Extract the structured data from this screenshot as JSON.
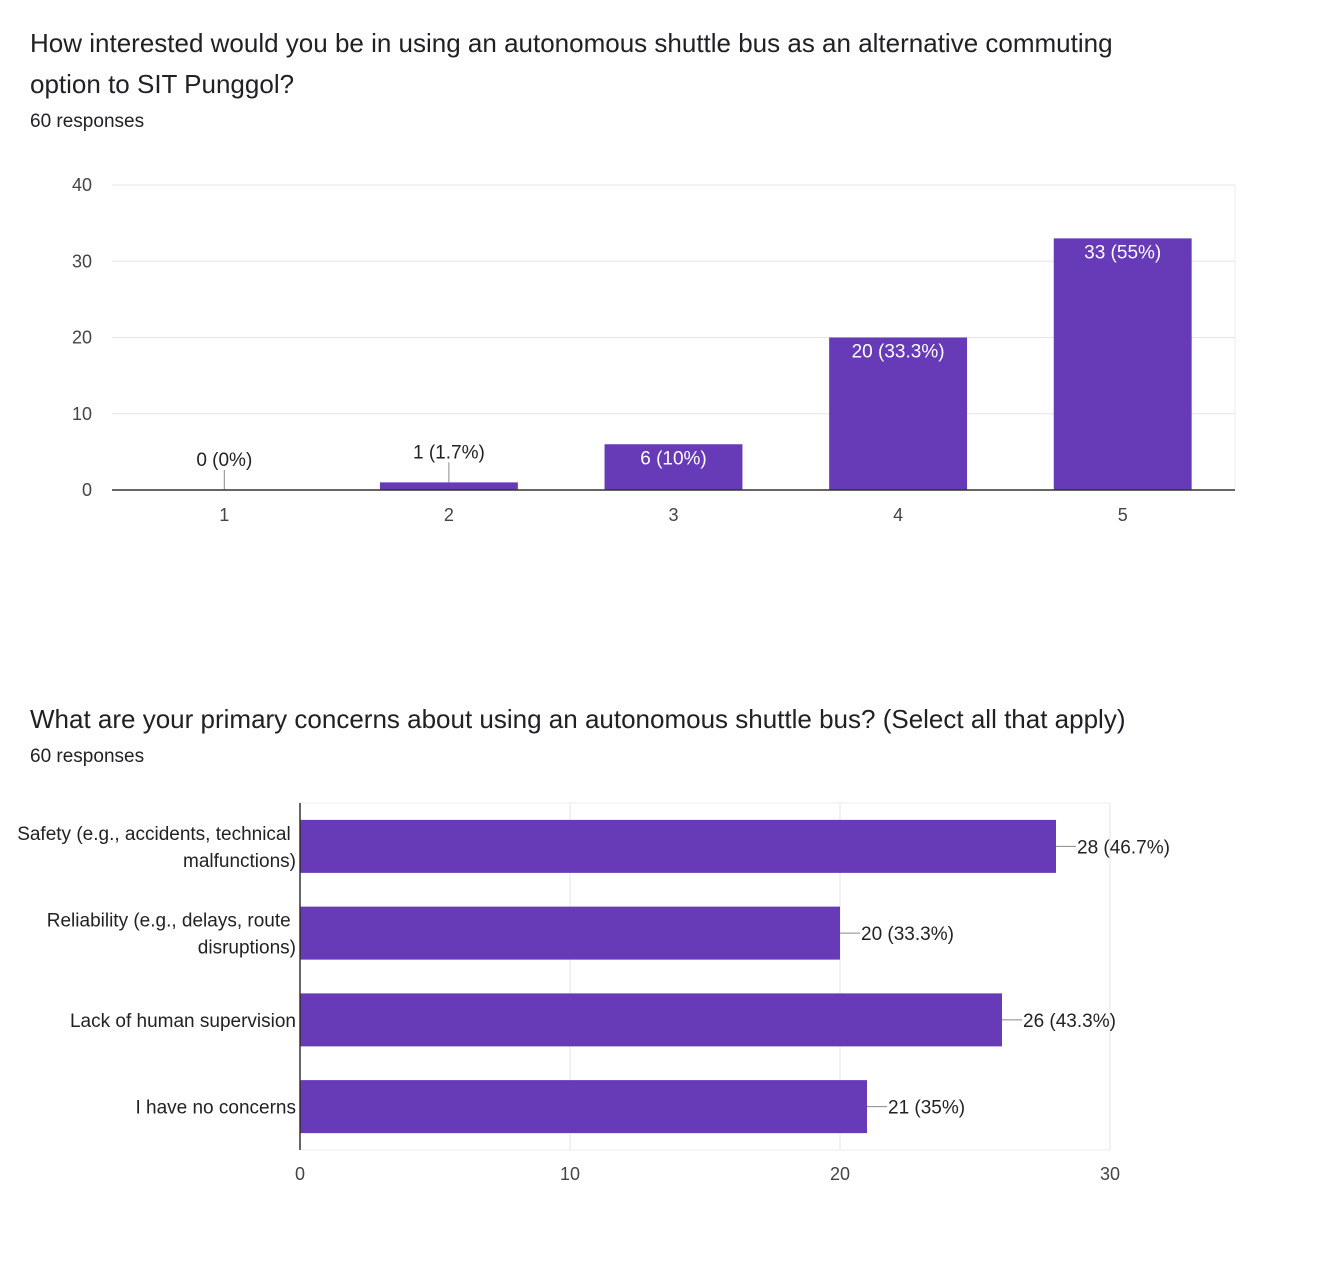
{
  "chart_data": [
    {
      "type": "bar",
      "title": "How interested would you be in using an autonomous shuttle bus as an alternative commuting option to SIT Punggol?",
      "subtitle": "60 responses",
      "categories": [
        "1",
        "2",
        "3",
        "4",
        "5"
      ],
      "values": [
        0,
        1,
        6,
        20,
        33
      ],
      "value_labels": [
        "0 (0%)",
        "1 (1.7%)",
        "6 (10%)",
        "20 (33.3%)",
        "33 (55%)"
      ],
      "color": "#673ab7",
      "ylim": [
        0,
        40
      ],
      "yticks": [
        0,
        10,
        20,
        30,
        40
      ],
      "grid": true
    },
    {
      "type": "barh",
      "title": "What are your primary concerns about using an autonomous shuttle bus? (Select all that apply)",
      "subtitle": "60 responses",
      "categories": [
        "Safety (e.g., accidents, technical malfunctions)",
        "Reliability (e.g., delays, route disruptions)",
        "Lack of human supervision",
        "I have no concerns"
      ],
      "values": [
        28,
        20,
        26,
        21
      ],
      "value_labels": [
        "28 (46.7%)",
        "20 (33.3%)",
        "26 (43.3%)",
        "21 (35%)"
      ],
      "color": "#673ab7",
      "xlim": [
        0,
        30
      ],
      "xticks": [
        0,
        10,
        20,
        30
      ],
      "grid": true
    }
  ]
}
